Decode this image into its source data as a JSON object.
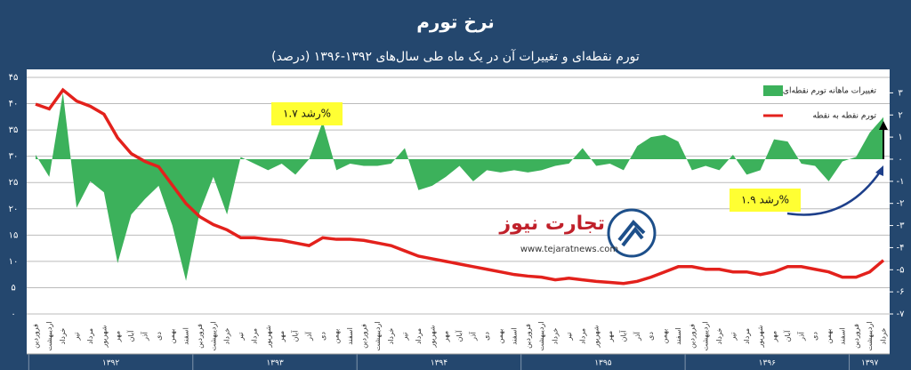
{
  "chart_data": {
    "type": "line_area",
    "title": "نرخ تورم",
    "subtitle": "تورم نقطه‌ای و تغییرات آن در یک ماه طی سال‌های ۱۳۹۲-۱۳۹۶ (درصد)",
    "categories": [
      "فروردین",
      "اردیبهشت",
      "خرداد",
      "تیر",
      "مرداد",
      "شهریور",
      "مهر",
      "آبان",
      "آذر",
      "دی",
      "بهمن",
      "اسفند",
      "فروردین",
      "اردیبهشت",
      "خرداد",
      "تیر",
      "مرداد",
      "شهریور",
      "مهر",
      "آبان",
      "آذر",
      "دی",
      "بهمن",
      "اسفند",
      "فروردین",
      "اردیبهشت",
      "خرداد",
      "تیر",
      "مرداد",
      "شهریور",
      "مهر",
      "آبان",
      "آذر",
      "دی",
      "بهمن",
      "اسفند",
      "فروردین",
      "اردیبهشت",
      "خرداد",
      "تیر",
      "مرداد",
      "شهریور",
      "مهر",
      "آبان",
      "آذر",
      "دی",
      "بهمن",
      "اسفند",
      "فروردین",
      "اردیبهشت",
      "خرداد",
      "تیر",
      "مرداد",
      "شهریور",
      "مهر",
      "آبان",
      "آذر",
      "دی",
      "بهمن",
      "اسفند",
      "فروردین",
      "اردیبهشت",
      "خرداد"
    ],
    "years": [
      "۱۳۹۲",
      "۱۳۹۳",
      "۱۳۹۴",
      "۱۳۹۵",
      "۱۳۹۶",
      "۱۳۹۷"
    ],
    "series": [
      {
        "name": "تغییرات ماهانه تورم نقطه‌ای",
        "color": "#3cb15b",
        "kind": "area",
        "axis": "y2",
        "values": [
          0.2,
          -0.8,
          3.0,
          -2.2,
          -1.0,
          -1.5,
          -4.7,
          -2.5,
          -1.8,
          -1.2,
          -3.0,
          -5.5,
          -2.4,
          -0.8,
          -2.5,
          0.1,
          -0.2,
          -0.5,
          -0.2,
          -0.7,
          0.0,
          1.7,
          -0.5,
          -0.2,
          -0.3,
          -0.3,
          -0.2,
          0.5,
          -1.4,
          -1.2,
          -0.8,
          -0.3,
          -1.0,
          -0.5,
          -0.6,
          -0.5,
          -0.6,
          -0.5,
          -0.3,
          -0.2,
          0.5,
          -0.3,
          -0.2,
          -0.5,
          0.6,
          1.0,
          1.1,
          0.8,
          -0.5,
          -0.3,
          -0.5,
          0.2,
          -0.7,
          -0.5,
          0.9,
          0.8,
          -0.2,
          -0.3,
          -1.0,
          -0.1,
          0.1,
          1.2,
          1.9
        ]
      },
      {
        "name": "تورم نقطه به نقطه",
        "color": "#e3211c",
        "kind": "line",
        "values": [
          39.9,
          39.0,
          42.6,
          40.5,
          39.5,
          38.0,
          33.5,
          30.5,
          29.0,
          28.0,
          24.5,
          21.0,
          18.5,
          17.0,
          16.0,
          14.5,
          14.5,
          14.2,
          14.0,
          13.5,
          13.0,
          14.5,
          14.2,
          14.2,
          14.0,
          13.5,
          13.0,
          12.0,
          11.0,
          10.5,
          10.0,
          9.5,
          9.0,
          8.5,
          8.0,
          7.5,
          7.2,
          7.0,
          6.5,
          6.8,
          6.5,
          6.2,
          6.0,
          5.8,
          6.2,
          7.0,
          8.0,
          9.0,
          9.0,
          8.5,
          8.5,
          8.0,
          8.0,
          7.5,
          8.0,
          9.0,
          9.0,
          8.5,
          8.0,
          7.0,
          7.0,
          8.0,
          10.2
        ]
      }
    ],
    "ylim": [
      0,
      45
    ],
    "yticks": [
      {
        "value": 0,
        "label": "۰"
      },
      {
        "value": 5,
        "label": "۵"
      },
      {
        "value": 10,
        "label": "۱۰"
      },
      {
        "value": 15,
        "label": "۱۵"
      },
      {
        "value": 20,
        "label": "۲۰"
      },
      {
        "value": 25,
        "label": "۲۵"
      },
      {
        "value": 30,
        "label": "۳۰"
      },
      {
        "value": 35,
        "label": "۳۵"
      },
      {
        "value": 40,
        "label": "۴۰"
      },
      {
        "value": 45,
        "label": "۴۵"
      }
    ],
    "y2lim": [
      -7,
      3.7
    ],
    "y2ticks": [
      {
        "value": -7,
        "label": "-۷"
      },
      {
        "value": -6,
        "label": "-۶"
      },
      {
        "value": -5,
        "label": "-۵"
      },
      {
        "value": -4,
        "label": "-۴"
      },
      {
        "value": -3,
        "label": "-۳"
      },
      {
        "value": -2,
        "label": "-۲"
      },
      {
        "value": -1,
        "label": "-۱"
      },
      {
        "value": 0,
        "label": "۰"
      },
      {
        "value": 1,
        "label": "۱"
      },
      {
        "value": 2,
        "label": "۲"
      },
      {
        "value": 3,
        "label": "۳"
      }
    ],
    "grid": true,
    "legend": "top-right",
    "annotations": [
      "رشد ۱.۷%",
      "رشد ۱.۹%"
    ]
  },
  "watermark": {
    "name": "تجارت نیوز",
    "url": "www.tejaratnews.com"
  }
}
